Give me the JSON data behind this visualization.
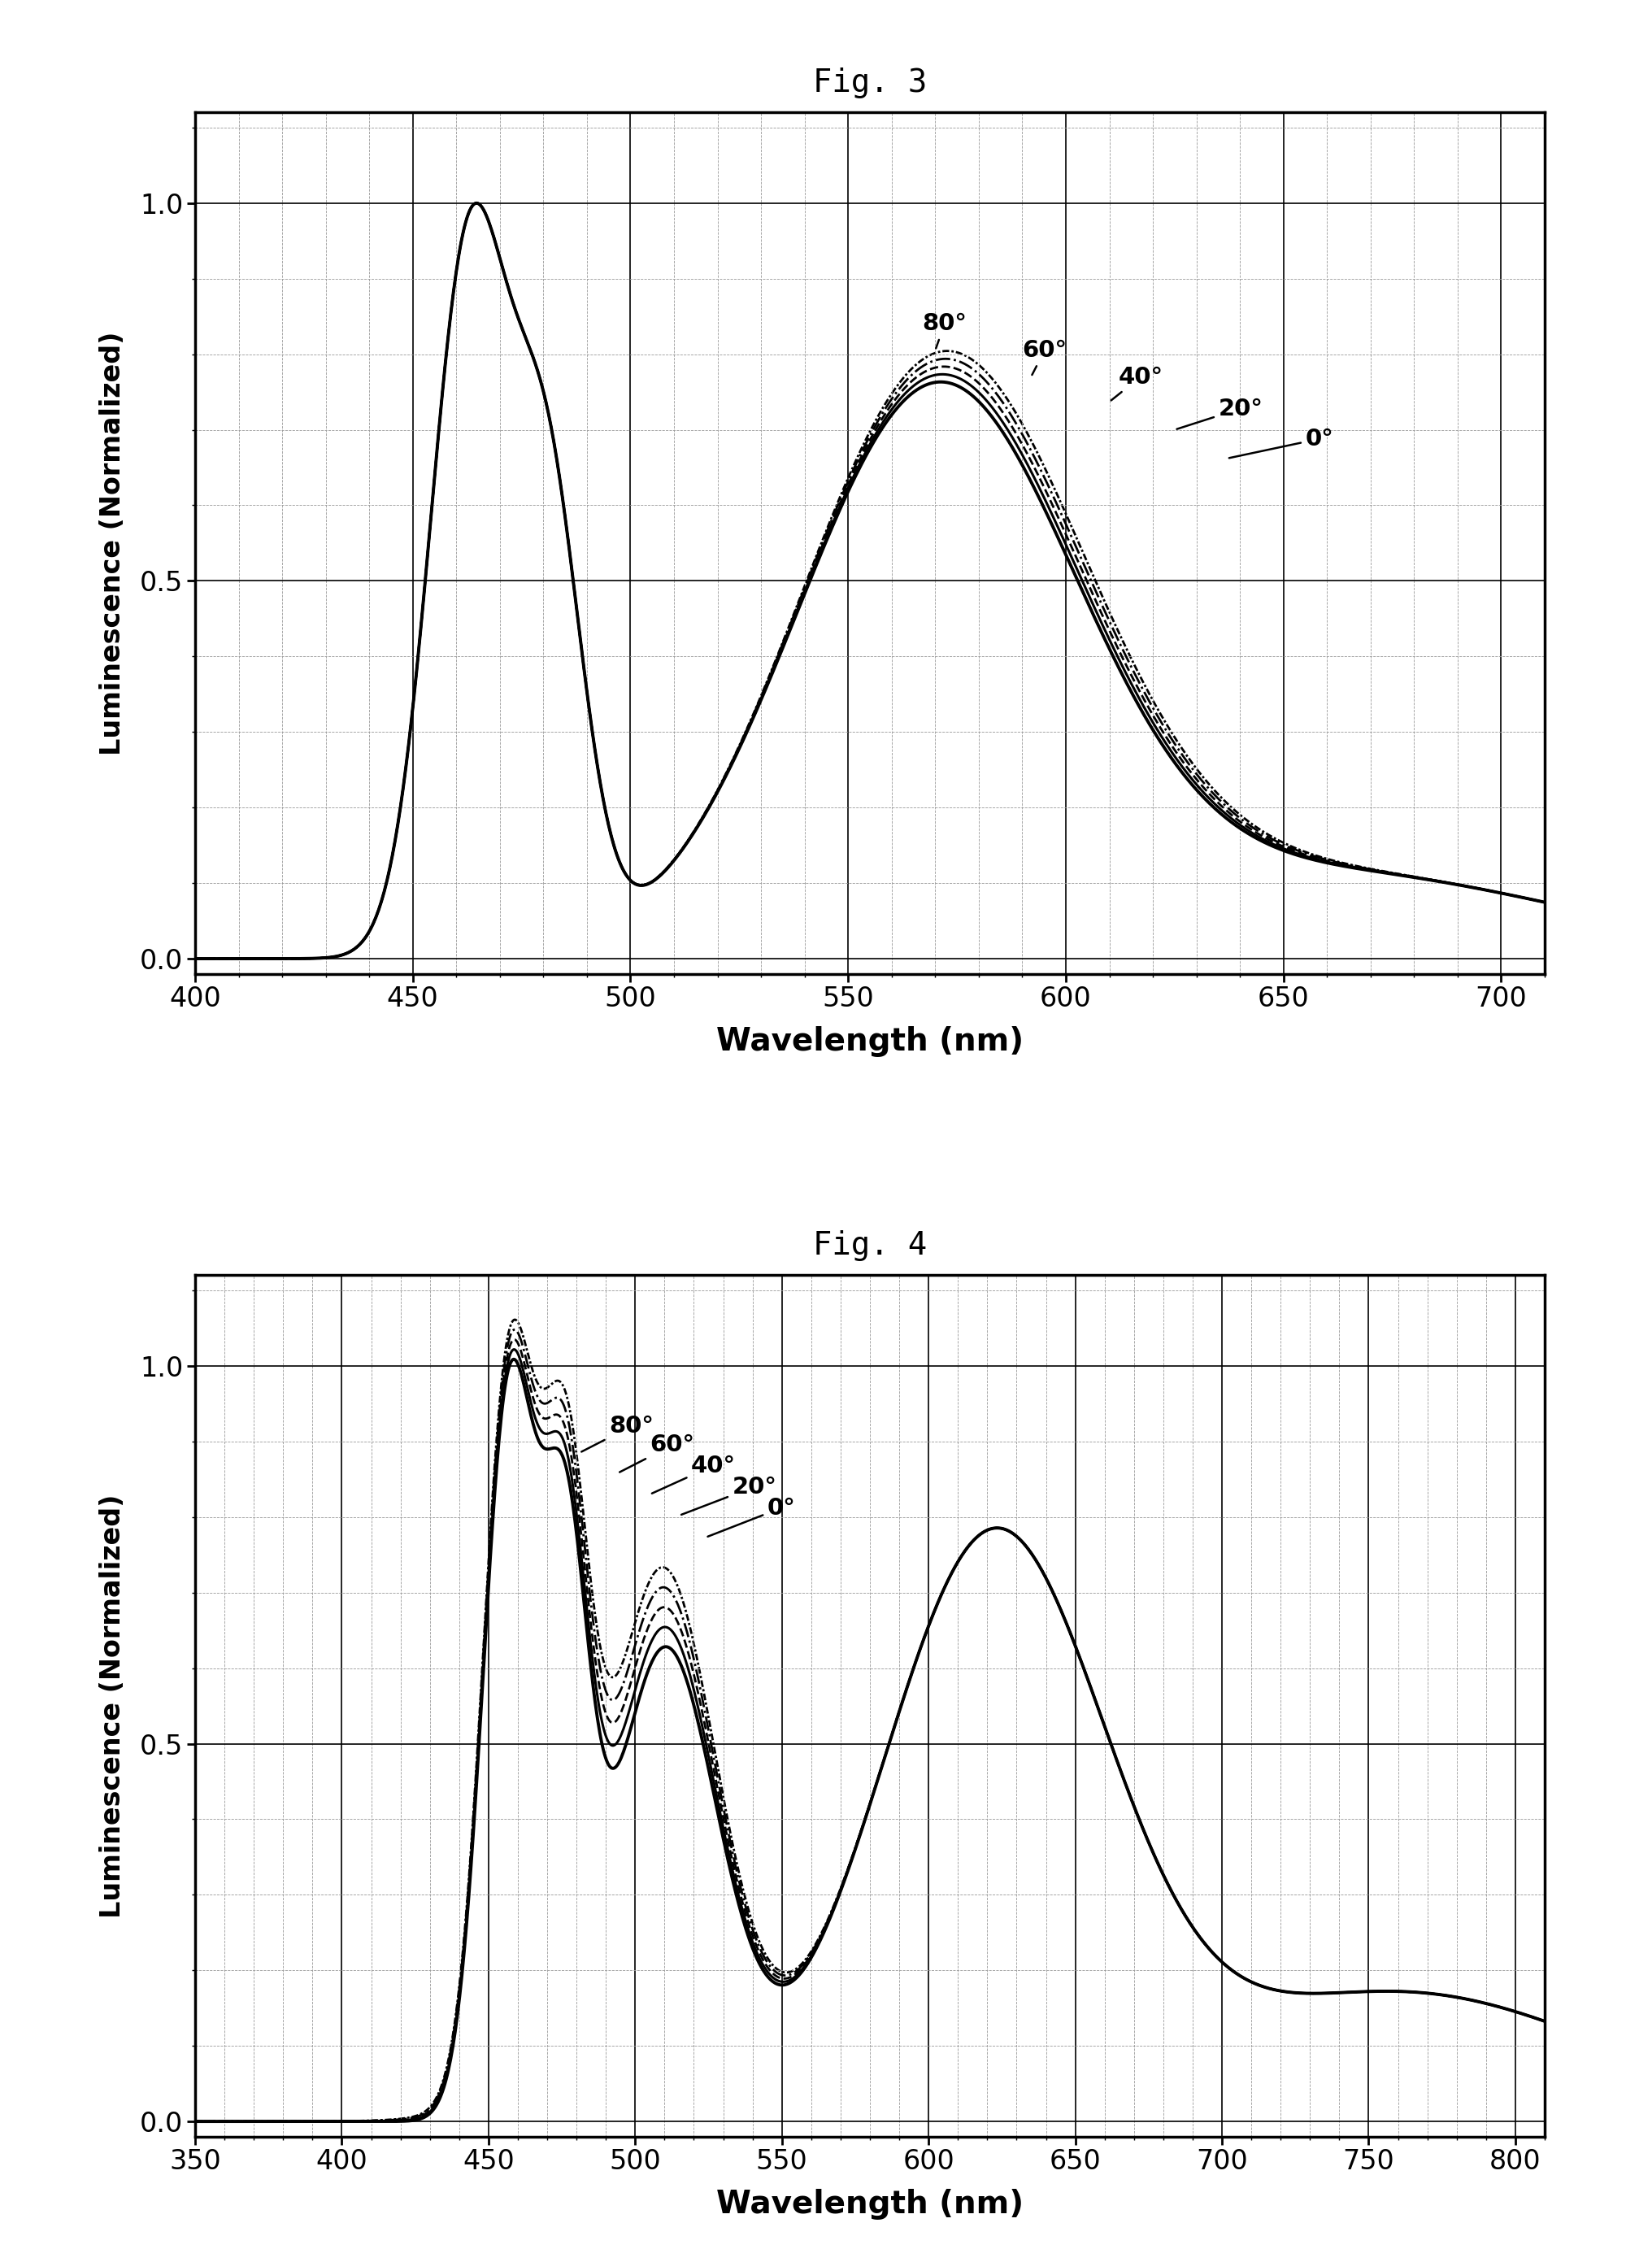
{
  "fig3_title": "Fig. 3",
  "fig4_title": "Fig. 4",
  "fig3_xlabel": "Wavelength (nm)",
  "fig3_ylabel": "Luminescence (Normalized)",
  "fig4_xlabel": "Wavelength (nm)",
  "fig4_ylabel": "Luminescence (Normalized)",
  "fig3_xlim": [
    400,
    710
  ],
  "fig3_ylim": [
    -0.02,
    1.12
  ],
  "fig4_xlim": [
    350,
    810
  ],
  "fig4_ylim": [
    -0.02,
    1.12
  ],
  "fig3_xticks": [
    400,
    450,
    500,
    550,
    600,
    650,
    700
  ],
  "fig3_yticks": [
    0.0,
    0.5,
    1.0
  ],
  "fig4_xticks": [
    350,
    400,
    450,
    500,
    550,
    600,
    650,
    700,
    750,
    800
  ],
  "fig4_yticks": [
    0.0,
    0.5,
    1.0
  ],
  "bg_color": "#ffffff",
  "line_color": "#000000"
}
